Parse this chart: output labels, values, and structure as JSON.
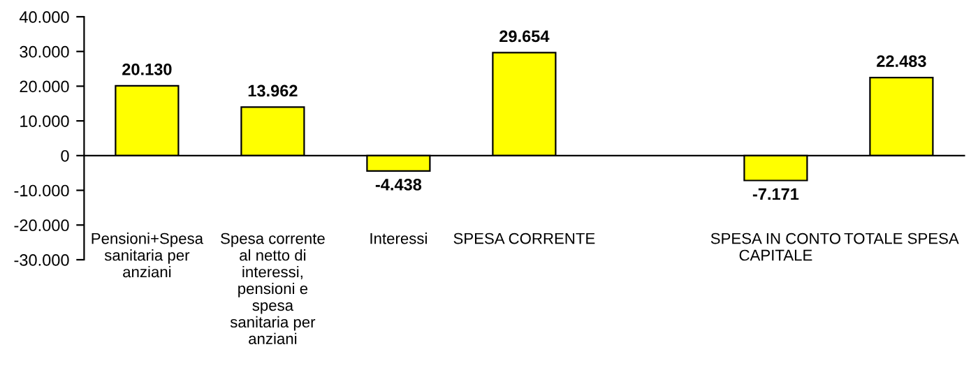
{
  "chart_data": {
    "type": "bar",
    "categories": [
      "Pensioni+Spesa sanitaria per anziani",
      "Spesa corrente al netto di interessi, pensioni e spesa sanitaria per anziani",
      "Interessi",
      "SPESA CORRENTE",
      null,
      "SPESA IN CONTO CAPITALE",
      "TOTALE SPESA"
    ],
    "values": [
      20130,
      13962,
      -4438,
      29654,
      null,
      -7171,
      22483
    ],
    "value_labels": [
      "20.130",
      "13.962",
      "-4.438",
      "29.654",
      null,
      "-7.171",
      "22.483"
    ],
    "color": "#ffff00",
    "ylim": [
      -30000,
      40000
    ],
    "yticks": [
      {
        "value": -30000,
        "label": "-30.000"
      },
      {
        "value": -20000,
        "label": "-20.000"
      },
      {
        "value": -10000,
        "label": "-10.000"
      },
      {
        "value": 0,
        "label": "0"
      },
      {
        "value": 10000,
        "label": "10.000"
      },
      {
        "value": 20000,
        "label": "20.000"
      },
      {
        "value": 30000,
        "label": "30.000"
      },
      {
        "value": 40000,
        "label": "40.000"
      }
    ]
  }
}
